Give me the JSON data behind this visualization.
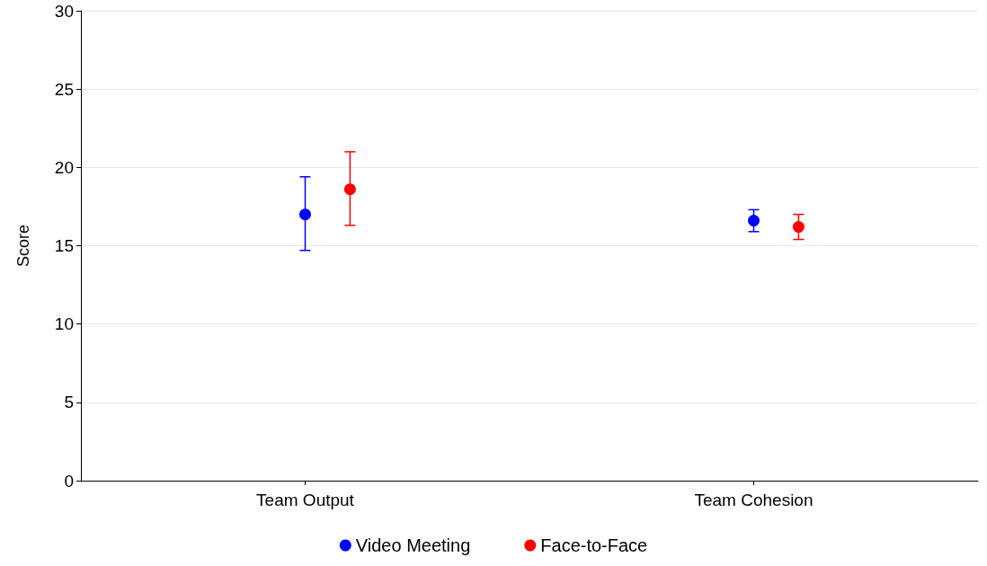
{
  "chart_data": {
    "type": "scatter",
    "ylabel": "Score",
    "categories": [
      "Team Output",
      "Team Cohesion"
    ],
    "series": [
      {
        "name": "Video Meeting",
        "color": "#0000ff",
        "values": [
          17.0,
          16.6
        ],
        "errors": [
          [
            14.7,
            19.4
          ],
          [
            15.9,
            17.3
          ]
        ]
      },
      {
        "name": "Face-to-Face",
        "color": "#ff0000",
        "values": [
          18.6,
          16.2
        ],
        "errors": [
          [
            16.3,
            21.0
          ],
          [
            15.4,
            17.0
          ]
        ]
      }
    ],
    "ylim": [
      0,
      30
    ],
    "yticks": [
      0,
      5,
      10,
      15,
      20,
      25,
      30
    ],
    "grid": "y",
    "legend": "bottom",
    "marker": "circle"
  }
}
